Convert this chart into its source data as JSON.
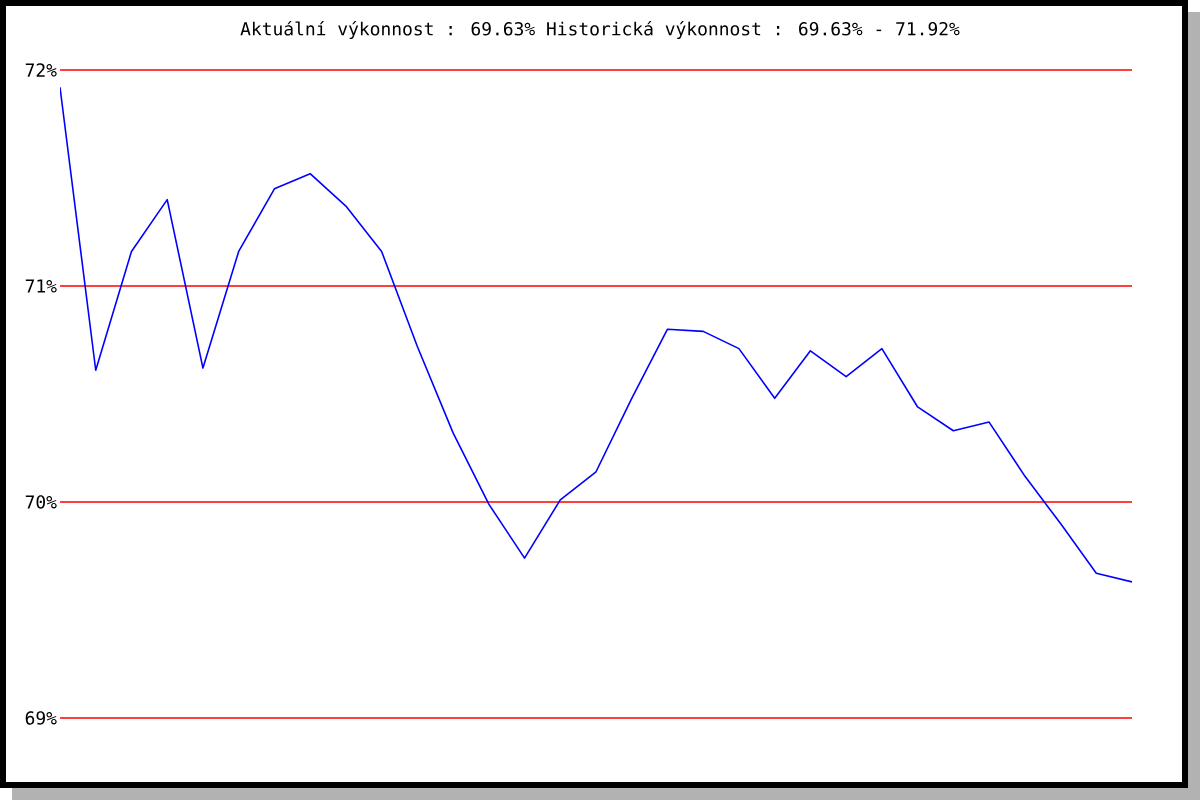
{
  "chart_data": {
    "type": "line",
    "title": "Aktuální výkonnost : 69.63%  Historická výkonnost : 69.63% - 71.92%",
    "categories": [
      null,
      null,
      null,
      null,
      null,
      null,
      null,
      null,
      null,
      null,
      null,
      null,
      null,
      null,
      null,
      null,
      null,
      null,
      null,
      null,
      null,
      null,
      null,
      null,
      null,
      null,
      null,
      null,
      null,
      null,
      null
    ],
    "values": [
      71.92,
      70.61,
      71.16,
      71.4,
      70.62,
      71.16,
      71.45,
      71.52,
      71.37,
      71.16,
      70.72,
      70.32,
      69.99,
      69.74,
      70.01,
      70.14,
      70.48,
      70.8,
      70.79,
      70.71,
      70.48,
      70.7,
      70.58,
      70.71,
      70.44,
      70.33,
      70.37,
      70.12,
      69.9,
      69.67,
      69.63
    ],
    "color": "#0000ff",
    "ylim": [
      69,
      72
    ],
    "yticks": [
      {
        "value": 69,
        "label": "69%"
      },
      {
        "value": 70,
        "label": "70%"
      },
      {
        "value": 71,
        "label": "71%"
      },
      {
        "value": 72,
        "label": "72%"
      }
    ],
    "grid": "y",
    "marker": "none",
    "line_style": "solid"
  }
}
